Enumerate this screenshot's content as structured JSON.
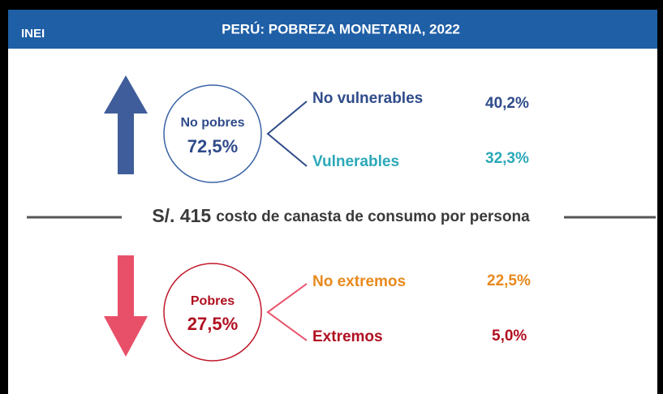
{
  "header": {
    "logo": "INEI",
    "title": "PERÚ: POBREZA MONETARIA, 2022"
  },
  "top": {
    "label": "No pobres",
    "value": "72,5%",
    "items": [
      {
        "label": "No vulnerables",
        "value": "40,2%"
      },
      {
        "label": "Vulnerables",
        "value": "32,3%"
      }
    ]
  },
  "divider": {
    "amount": "S/. 415",
    "text": "costo de canasta de consumo por persona"
  },
  "bottom": {
    "label": "Pobres",
    "value": "27,5%",
    "items": [
      {
        "label": "No extremos",
        "value": "22,5%"
      },
      {
        "label": "Extremos",
        "value": "5,0%"
      }
    ]
  }
}
